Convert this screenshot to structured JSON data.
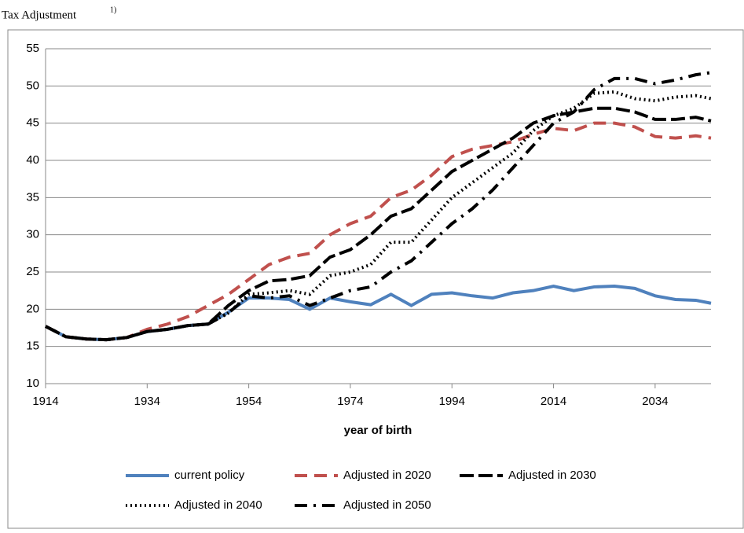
{
  "chart_data": {
    "type": "line",
    "title": "Tax Adjustment",
    "title_note": "1)",
    "x_label": "year of birth",
    "x": [
      1914,
      1918,
      1922,
      1926,
      1930,
      1934,
      1938,
      1942,
      1946,
      1950,
      1954,
      1958,
      1962,
      1966,
      1970,
      1974,
      1978,
      1982,
      1986,
      1990,
      1994,
      1998,
      2002,
      2006,
      2010,
      2014,
      2018,
      2022,
      2026,
      2030,
      2034,
      2038,
      2042,
      2045
    ],
    "xlim": [
      1914,
      2045
    ],
    "xticks": [
      1914,
      1934,
      1954,
      1974,
      1994,
      2014,
      2034
    ],
    "ylim": [
      10,
      55
    ],
    "yticks": [
      10,
      15,
      20,
      25,
      30,
      35,
      40,
      45,
      50,
      55
    ],
    "grid": true,
    "series": [
      {
        "name": "current policy",
        "color": "#4f81bd",
        "dash": "none",
        "values": [
          17.7,
          16.3,
          16.0,
          15.9,
          16.2,
          17.0,
          17.3,
          17.8,
          18.0,
          19.6,
          21.5,
          21.5,
          21.3,
          20.0,
          21.5,
          21.0,
          20.6,
          22.0,
          20.5,
          22.0,
          22.2,
          21.8,
          21.5,
          22.2,
          22.5,
          23.1,
          22.5,
          23.0,
          23.1,
          22.8,
          21.8,
          21.3,
          21.2,
          20.8
        ]
      },
      {
        "name": "Adjusted in 2020",
        "color": "#c0504d",
        "dash": "16 9",
        "values": [
          17.7,
          16.3,
          16.0,
          15.9,
          16.2,
          17.3,
          18.0,
          19.0,
          20.5,
          22.0,
          24.0,
          26.0,
          27.0,
          27.5,
          30.0,
          31.5,
          32.5,
          35.0,
          36.0,
          38.0,
          40.5,
          41.5,
          42.0,
          42.5,
          43.5,
          44.3,
          44.0,
          45.0,
          45.0,
          44.5,
          43.2,
          43.0,
          43.3,
          43.0
        ]
      },
      {
        "name": "Adjusted in 2030",
        "color": "#000000",
        "dash": "18 6",
        "values": [
          17.7,
          16.3,
          16.0,
          15.9,
          16.2,
          17.0,
          17.3,
          17.8,
          18.0,
          20.5,
          22.5,
          23.8,
          24.0,
          24.5,
          27.0,
          28.0,
          30.0,
          32.5,
          33.5,
          36.0,
          38.5,
          40.0,
          41.5,
          43.0,
          45.0,
          46.0,
          46.5,
          47.0,
          47.0,
          46.5,
          45.5,
          45.5,
          45.8,
          45.3
        ]
      },
      {
        "name": "Adjusted in 2040",
        "color": "#000000",
        "dash": "2 4",
        "values": [
          17.7,
          16.3,
          16.0,
          15.9,
          16.2,
          17.0,
          17.3,
          17.8,
          18.0,
          19.5,
          22.0,
          22.2,
          22.5,
          22.0,
          24.5,
          25.0,
          26.0,
          29.0,
          29.0,
          32.0,
          35.0,
          37.0,
          39.0,
          41.0,
          44.0,
          46.0,
          47.0,
          49.0,
          49.2,
          48.3,
          48.0,
          48.5,
          48.7,
          48.3
        ]
      },
      {
        "name": "Adjusted in 2050",
        "color": "#000000",
        "dash": "16 8 3 8",
        "values": [
          17.7,
          16.3,
          16.0,
          15.9,
          16.2,
          17.0,
          17.3,
          17.8,
          18.0,
          19.5,
          21.8,
          21.5,
          21.8,
          20.5,
          21.5,
          22.5,
          23.0,
          25.0,
          26.5,
          29.0,
          31.5,
          33.5,
          36.0,
          39.0,
          42.0,
          45.0,
          46.5,
          49.5,
          51.0,
          51.0,
          50.3,
          50.8,
          51.5,
          51.8
        ]
      }
    ]
  }
}
